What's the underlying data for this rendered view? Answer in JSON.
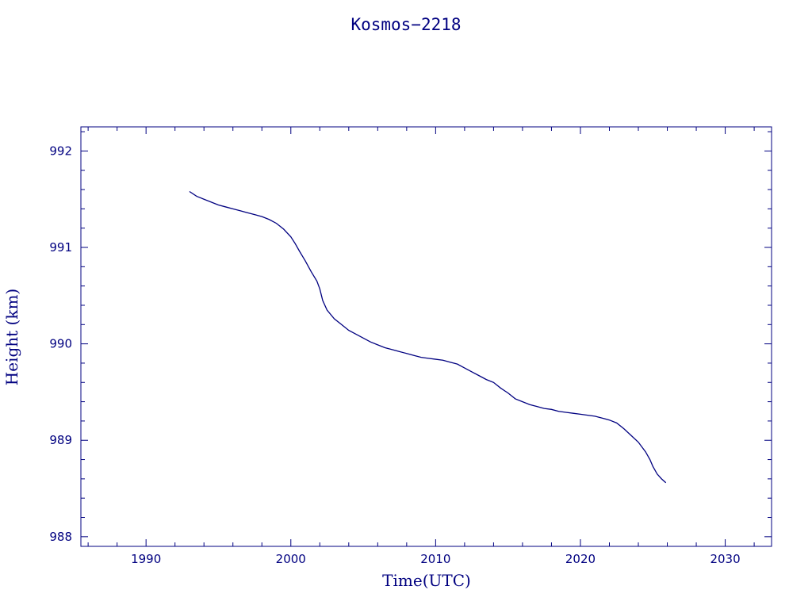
{
  "chart_data": {
    "type": "line",
    "title": "Kosmos−2218",
    "xlabel": "Time(UTC)",
    "ylabel": "Height (km)",
    "xlim": [
      1985.5,
      2033.2
    ],
    "ylim": [
      987.9,
      992.25
    ],
    "x_ticks": [
      1990,
      2000,
      2010,
      2020,
      2030
    ],
    "x_tick_labels": [
      "1990",
      "2000",
      "2010",
      "2020",
      "2030"
    ],
    "y_ticks": [
      988,
      989,
      990,
      991,
      992
    ],
    "y_tick_labels": [
      "988",
      "989",
      "990",
      "991",
      "992"
    ],
    "x_minor_step": 2,
    "y_minor_step": 0.2,
    "grid": false,
    "color": "#000080",
    "series": [
      {
        "x": [
          1993.0,
          1993.5,
          1994.0,
          1994.5,
          1995.0,
          1995.5,
          1996.0,
          1996.5,
          1997.0,
          1997.5,
          1998.0,
          1998.5,
          1999.0,
          1999.5,
          2000.0,
          2000.3,
          2000.6,
          2001.0,
          2001.4,
          2001.8,
          2002.0,
          2002.2,
          2002.5,
          2003.0,
          2003.5,
          2004.0,
          2004.5,
          2005.0,
          2005.5,
          2006.0,
          2006.5,
          2007.0,
          2007.5,
          2008.0,
          2008.5,
          2009.0,
          2009.5,
          2010.0,
          2010.5,
          2011.0,
          2011.5,
          2012.0,
          2012.5,
          2013.0,
          2013.5,
          2014.0,
          2014.5,
          2015.0,
          2015.5,
          2016.0,
          2016.5,
          2017.0,
          2017.5,
          2018.0,
          2018.5,
          2019.0,
          2019.5,
          2020.0,
          2020.5,
          2021.0,
          2021.5,
          2022.0,
          2022.5,
          2023.0,
          2023.5,
          2024.0,
          2024.5,
          2024.8,
          2025.0,
          2025.3,
          2025.6,
          2025.9
        ],
        "y": [
          991.58,
          991.53,
          991.5,
          991.47,
          991.44,
          991.42,
          991.4,
          991.38,
          991.36,
          991.34,
          991.32,
          991.29,
          991.25,
          991.19,
          991.11,
          991.04,
          990.96,
          990.86,
          990.75,
          990.65,
          990.57,
          990.45,
          990.35,
          990.26,
          990.2,
          990.14,
          990.1,
          990.06,
          990.02,
          989.99,
          989.96,
          989.94,
          989.92,
          989.9,
          989.88,
          989.86,
          989.85,
          989.84,
          989.83,
          989.81,
          989.79,
          989.75,
          989.71,
          989.67,
          989.63,
          989.6,
          989.54,
          989.49,
          989.43,
          989.4,
          989.37,
          989.35,
          989.33,
          989.32,
          989.3,
          989.29,
          989.28,
          989.27,
          989.26,
          989.25,
          989.23,
          989.21,
          989.18,
          989.12,
          989.05,
          988.98,
          988.88,
          988.8,
          988.73,
          988.65,
          988.6,
          988.56
        ]
      }
    ]
  }
}
